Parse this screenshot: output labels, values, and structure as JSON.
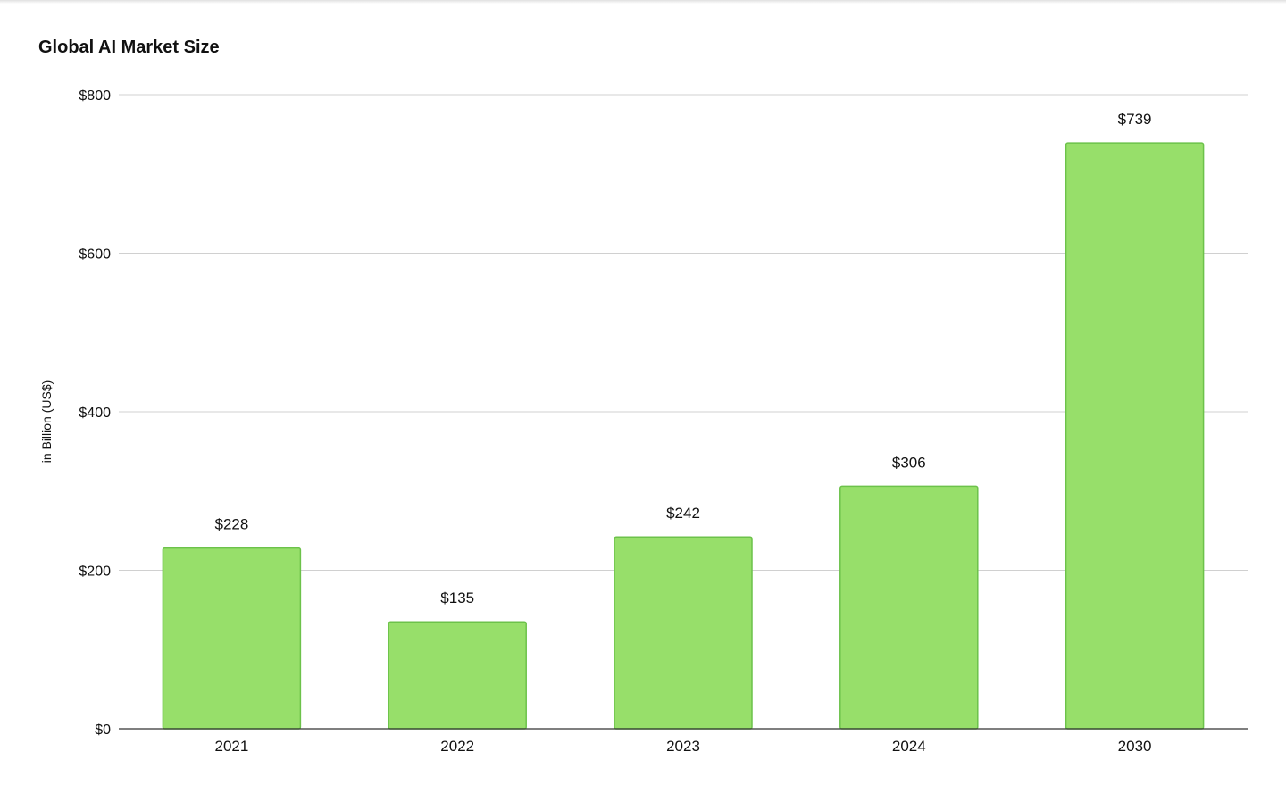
{
  "chart_data": {
    "type": "bar",
    "title": "Global AI Market Size",
    "xlabel": "",
    "ylabel": "in Billion (US$)",
    "categories": [
      "2021",
      "2022",
      "2023",
      "2024",
      "2030"
    ],
    "values": [
      228,
      135,
      242,
      306,
      739
    ],
    "data_labels": [
      "$228",
      "$135",
      "$242",
      "$306",
      "$739"
    ],
    "yticks": [
      0,
      200,
      400,
      600,
      800
    ],
    "ytick_labels": [
      "$0",
      "$200",
      "$400",
      "$600",
      "$800"
    ],
    "ylim": [
      0,
      800
    ],
    "grid": true,
    "legend": "none",
    "colors": {
      "bar_fill": "#97df6a",
      "bar_stroke": "#6cc24a",
      "grid": "#d0d0d0",
      "axis": "#333333"
    }
  }
}
